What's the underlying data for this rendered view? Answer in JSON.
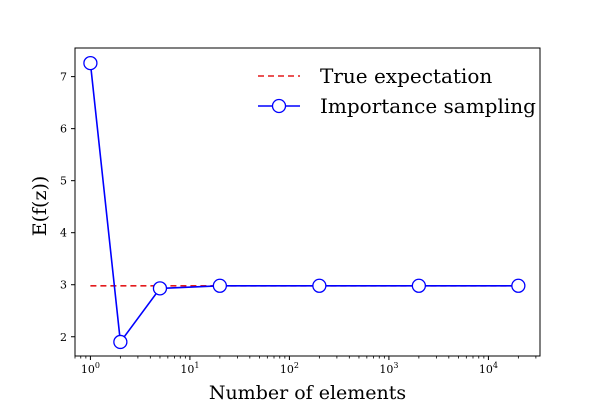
{
  "chart_data": {
    "type": "line",
    "x_scale": "log",
    "xlabel": "Number of elements",
    "ylabel": "E(f(z))",
    "xlim": [
      0.7,
      33000
    ],
    "ylim": [
      1.63,
      7.55
    ],
    "y_ticks": [
      2,
      3,
      4,
      5,
      6,
      7
    ],
    "x_ticks": [
      {
        "value": 1,
        "base": "10",
        "exp": "0"
      },
      {
        "value": 10,
        "base": "10",
        "exp": "1"
      },
      {
        "value": 100,
        "base": "10",
        "exp": "2"
      },
      {
        "value": 1000,
        "base": "10",
        "exp": "3"
      },
      {
        "value": 10000,
        "base": "10",
        "exp": "4"
      }
    ],
    "grid": false,
    "legend_position": "top-right",
    "series": [
      {
        "name": "True expectation",
        "style": "dashed",
        "color": "#e31a1c",
        "x": [
          1,
          20000
        ],
        "y": [
          2.98,
          2.98
        ]
      },
      {
        "name": "Importance sampling",
        "style": "solid-markers",
        "color": "#0000ff",
        "x": [
          1,
          2,
          5,
          20,
          200,
          2000,
          20000
        ],
        "y": [
          7.26,
          1.9,
          2.93,
          2.98,
          2.98,
          2.98,
          2.98
        ]
      }
    ]
  }
}
